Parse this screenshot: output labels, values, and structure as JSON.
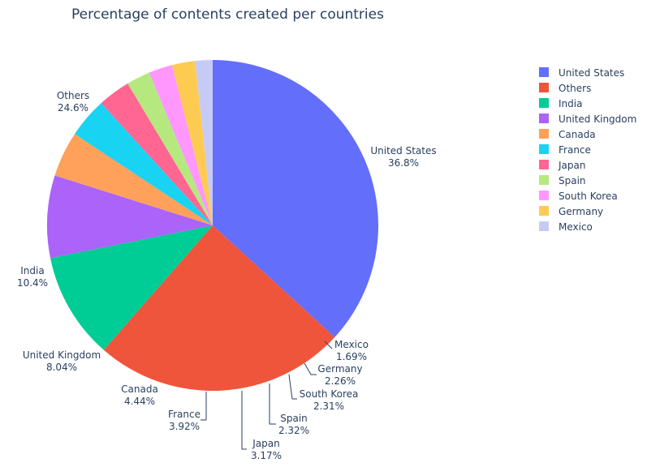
{
  "chart_data": {
    "type": "pie",
    "title": "Percentage of contents created per countries",
    "legend_position": "right",
    "slices": [
      {
        "label": "United States",
        "percent_text": "36.8%",
        "value": 36.8,
        "color": "#636efa"
      },
      {
        "label": "Others",
        "percent_text": "24.6%",
        "value": 24.6,
        "color": "#ef553b"
      },
      {
        "label": "India",
        "percent_text": "10.4%",
        "value": 10.4,
        "color": "#00cc96"
      },
      {
        "label": "United Kingdom",
        "percent_text": "8.04%",
        "value": 8.04,
        "color": "#ab63fa"
      },
      {
        "label": "Canada",
        "percent_text": "4.44%",
        "value": 4.44,
        "color": "#ffa15a"
      },
      {
        "label": "France",
        "percent_text": "3.92%",
        "value": 3.92,
        "color": "#19d3f3"
      },
      {
        "label": "Japan",
        "percent_text": "3.17%",
        "value": 3.17,
        "color": "#ff6692"
      },
      {
        "label": "Spain",
        "percent_text": "2.32%",
        "value": 2.32,
        "color": "#b6e880"
      },
      {
        "label": "South Korea",
        "percent_text": "2.31%",
        "value": 2.31,
        "color": "#ff97ff"
      },
      {
        "label": "Germany",
        "percent_text": "2.26%",
        "value": 2.26,
        "color": "#fecb52"
      },
      {
        "label": "Mexico",
        "percent_text": "1.69%",
        "value": 1.69,
        "color": "#c6cbf6"
      }
    ]
  }
}
